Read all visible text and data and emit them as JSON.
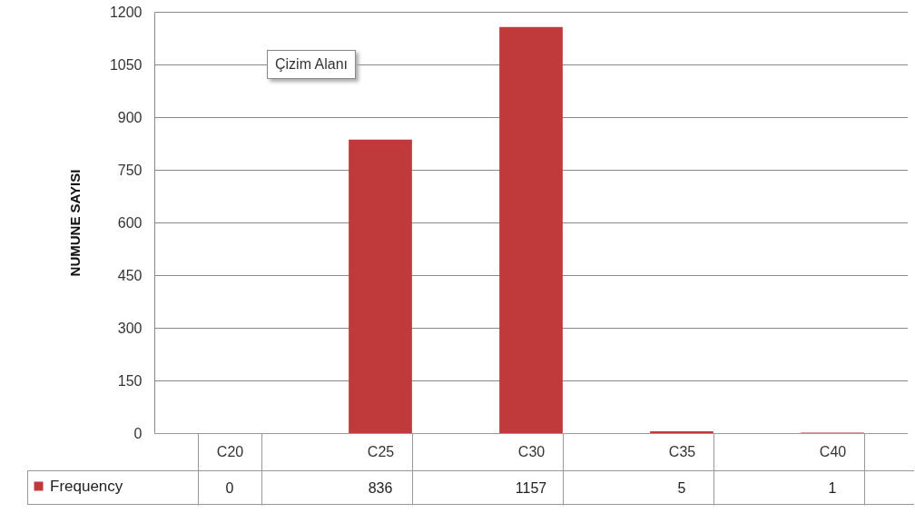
{
  "chart_data": {
    "type": "bar",
    "ylabel": "NUMUNE  SAYISI",
    "categories": [
      "C20",
      "C25",
      "C30",
      "C35",
      "C40"
    ],
    "series": [
      {
        "name": "Frequency",
        "color": "#c0393b",
        "values": [
          0,
          836,
          1157,
          5,
          1
        ]
      }
    ],
    "ylim": [
      0,
      1200
    ],
    "yticks": [
      0,
      150,
      300,
      450,
      600,
      750,
      900,
      1050,
      1200
    ],
    "grid": "y",
    "legend": "bottom left",
    "data_labels": true,
    "annotations": [
      "Çizim Alanı"
    ]
  }
}
